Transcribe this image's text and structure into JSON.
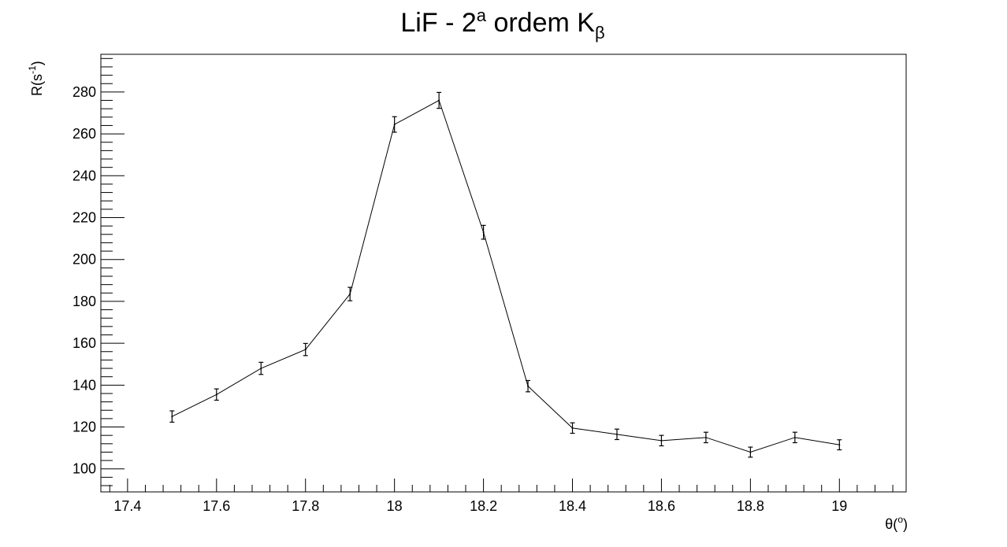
{
  "chart_data": {
    "type": "line",
    "title": {
      "main": "LiF - 2",
      "sup": "a",
      "rest": " ordem K",
      "sub": "β"
    },
    "xlabel": {
      "main": "θ(",
      "sup": "o",
      "end": ")"
    },
    "ylabel": {
      "main": "R(s",
      "sup": "-1",
      "end": ")"
    },
    "xlim": [
      17.34,
      19.15
    ],
    "ylim": [
      89,
      298
    ],
    "x_ticks": [
      "17.4",
      "17.6",
      "17.8",
      "18",
      "18.2",
      "18.4",
      "18.6",
      "18.8",
      "19"
    ],
    "y_ticks": [
      "100",
      "120",
      "140",
      "160",
      "180",
      "200",
      "220",
      "240",
      "260",
      "280"
    ],
    "grid": false,
    "x": [
      17.5,
      17.6,
      17.7,
      17.8,
      17.9,
      18.0,
      18.1,
      18.2,
      18.3,
      18.4,
      18.5,
      18.6,
      18.7,
      18.8,
      18.9,
      19.0
    ],
    "y": [
      125,
      135.5,
      148,
      157,
      183.5,
      264.5,
      276,
      213,
      139.5,
      119.5,
      116.5,
      113.5,
      115,
      108,
      115,
      111.5
    ],
    "err": [
      2.7,
      2.7,
      2.9,
      2.9,
      3.2,
      3.7,
      3.8,
      3.3,
      2.7,
      2.5,
      2.5,
      2.5,
      2.5,
      2.4,
      2.5,
      2.4
    ]
  }
}
